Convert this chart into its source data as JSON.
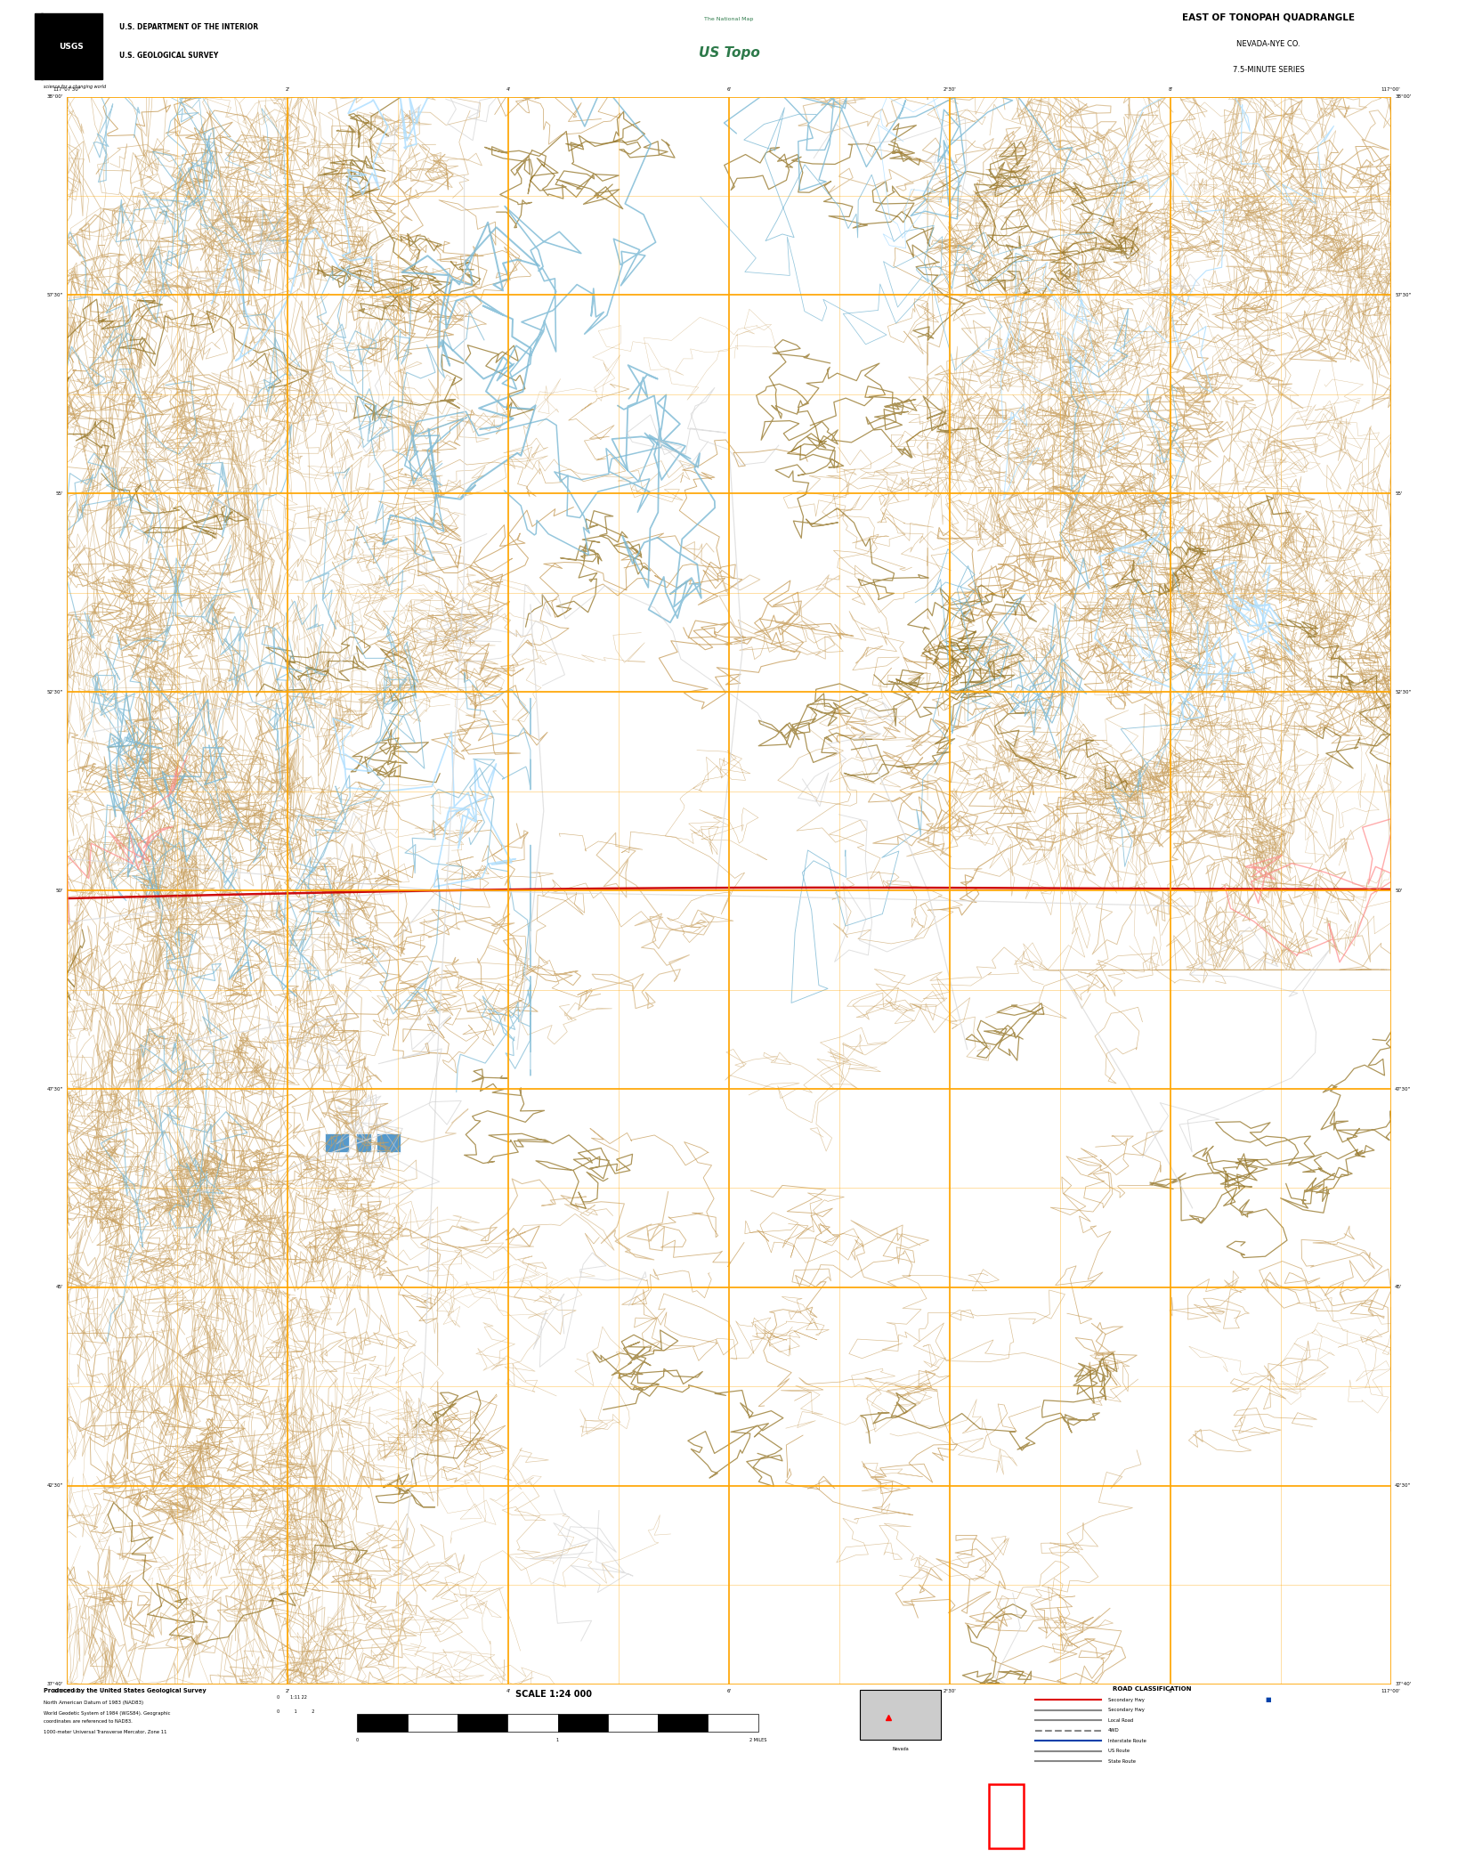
{
  "title": "EAST OF TONOPAH QUADRANGLE",
  "subtitle1": "NEVADA-NYE CO.",
  "subtitle2": "7.5-MINUTE SERIES",
  "usgs_line1": "U.S. DEPARTMENT OF THE INTERIOR",
  "usgs_line2": "U.S. GEOLOGICAL SURVEY",
  "usgs_tag": "science for a changing world",
  "scale_text": "SCALE 1:24 000",
  "map_bg": "#000000",
  "page_bg": "#ffffff",
  "grid_color": "#FFA500",
  "topo_color_light": "#c8a060",
  "topo_color_dark": "#8B6914",
  "road_major_color": "#cc0000",
  "water_color": "#7ab8d4",
  "white_road": "#dddddd",
  "usgs_green": "#2d7a4a",
  "text_color": "#000000",
  "map_l": 0.046,
  "map_r": 0.954,
  "map_t": 0.948,
  "map_b": 0.094,
  "footer_t": 0.094,
  "footer_b": 0.048,
  "bottombar_t": 0.048,
  "bottombar_b": 0.0
}
